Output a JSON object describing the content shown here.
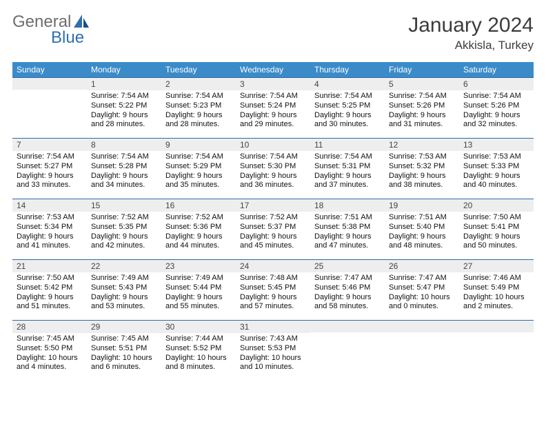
{
  "brand": {
    "text1": "General",
    "text2": "Blue"
  },
  "title": "January 2024",
  "location": "Akkisla, Turkey",
  "colors": {
    "header_bg": "#3b8bc9",
    "header_text": "#ffffff",
    "strip_bg": "#eeeeee",
    "strip_border": "#2c6aa3",
    "logo_gray": "#6d6d6d",
    "logo_blue": "#2f6fb0"
  },
  "day_names": [
    "Sunday",
    "Monday",
    "Tuesday",
    "Wednesday",
    "Thursday",
    "Friday",
    "Saturday"
  ],
  "weeks": [
    [
      null,
      {
        "n": 1,
        "sr": "7:54 AM",
        "ss": "5:22 PM",
        "dl": "9 hours and 28 minutes."
      },
      {
        "n": 2,
        "sr": "7:54 AM",
        "ss": "5:23 PM",
        "dl": "9 hours and 28 minutes."
      },
      {
        "n": 3,
        "sr": "7:54 AM",
        "ss": "5:24 PM",
        "dl": "9 hours and 29 minutes."
      },
      {
        "n": 4,
        "sr": "7:54 AM",
        "ss": "5:25 PM",
        "dl": "9 hours and 30 minutes."
      },
      {
        "n": 5,
        "sr": "7:54 AM",
        "ss": "5:26 PM",
        "dl": "9 hours and 31 minutes."
      },
      {
        "n": 6,
        "sr": "7:54 AM",
        "ss": "5:26 PM",
        "dl": "9 hours and 32 minutes."
      }
    ],
    [
      {
        "n": 7,
        "sr": "7:54 AM",
        "ss": "5:27 PM",
        "dl": "9 hours and 33 minutes."
      },
      {
        "n": 8,
        "sr": "7:54 AM",
        "ss": "5:28 PM",
        "dl": "9 hours and 34 minutes."
      },
      {
        "n": 9,
        "sr": "7:54 AM",
        "ss": "5:29 PM",
        "dl": "9 hours and 35 minutes."
      },
      {
        "n": 10,
        "sr": "7:54 AM",
        "ss": "5:30 PM",
        "dl": "9 hours and 36 minutes."
      },
      {
        "n": 11,
        "sr": "7:54 AM",
        "ss": "5:31 PM",
        "dl": "9 hours and 37 minutes."
      },
      {
        "n": 12,
        "sr": "7:53 AM",
        "ss": "5:32 PM",
        "dl": "9 hours and 38 minutes."
      },
      {
        "n": 13,
        "sr": "7:53 AM",
        "ss": "5:33 PM",
        "dl": "9 hours and 40 minutes."
      }
    ],
    [
      {
        "n": 14,
        "sr": "7:53 AM",
        "ss": "5:34 PM",
        "dl": "9 hours and 41 minutes."
      },
      {
        "n": 15,
        "sr": "7:52 AM",
        "ss": "5:35 PM",
        "dl": "9 hours and 42 minutes."
      },
      {
        "n": 16,
        "sr": "7:52 AM",
        "ss": "5:36 PM",
        "dl": "9 hours and 44 minutes."
      },
      {
        "n": 17,
        "sr": "7:52 AM",
        "ss": "5:37 PM",
        "dl": "9 hours and 45 minutes."
      },
      {
        "n": 18,
        "sr": "7:51 AM",
        "ss": "5:38 PM",
        "dl": "9 hours and 47 minutes."
      },
      {
        "n": 19,
        "sr": "7:51 AM",
        "ss": "5:40 PM",
        "dl": "9 hours and 48 minutes."
      },
      {
        "n": 20,
        "sr": "7:50 AM",
        "ss": "5:41 PM",
        "dl": "9 hours and 50 minutes."
      }
    ],
    [
      {
        "n": 21,
        "sr": "7:50 AM",
        "ss": "5:42 PM",
        "dl": "9 hours and 51 minutes."
      },
      {
        "n": 22,
        "sr": "7:49 AM",
        "ss": "5:43 PM",
        "dl": "9 hours and 53 minutes."
      },
      {
        "n": 23,
        "sr": "7:49 AM",
        "ss": "5:44 PM",
        "dl": "9 hours and 55 minutes."
      },
      {
        "n": 24,
        "sr": "7:48 AM",
        "ss": "5:45 PM",
        "dl": "9 hours and 57 minutes."
      },
      {
        "n": 25,
        "sr": "7:47 AM",
        "ss": "5:46 PM",
        "dl": "9 hours and 58 minutes."
      },
      {
        "n": 26,
        "sr": "7:47 AM",
        "ss": "5:47 PM",
        "dl": "10 hours and 0 minutes."
      },
      {
        "n": 27,
        "sr": "7:46 AM",
        "ss": "5:49 PM",
        "dl": "10 hours and 2 minutes."
      }
    ],
    [
      {
        "n": 28,
        "sr": "7:45 AM",
        "ss": "5:50 PM",
        "dl": "10 hours and 4 minutes."
      },
      {
        "n": 29,
        "sr": "7:45 AM",
        "ss": "5:51 PM",
        "dl": "10 hours and 6 minutes."
      },
      {
        "n": 30,
        "sr": "7:44 AM",
        "ss": "5:52 PM",
        "dl": "10 hours and 8 minutes."
      },
      {
        "n": 31,
        "sr": "7:43 AM",
        "ss": "5:53 PM",
        "dl": "10 hours and 10 minutes."
      },
      null,
      null,
      null
    ]
  ],
  "labels": {
    "sunrise": "Sunrise:",
    "sunset": "Sunset:",
    "daylight": "Daylight:"
  }
}
